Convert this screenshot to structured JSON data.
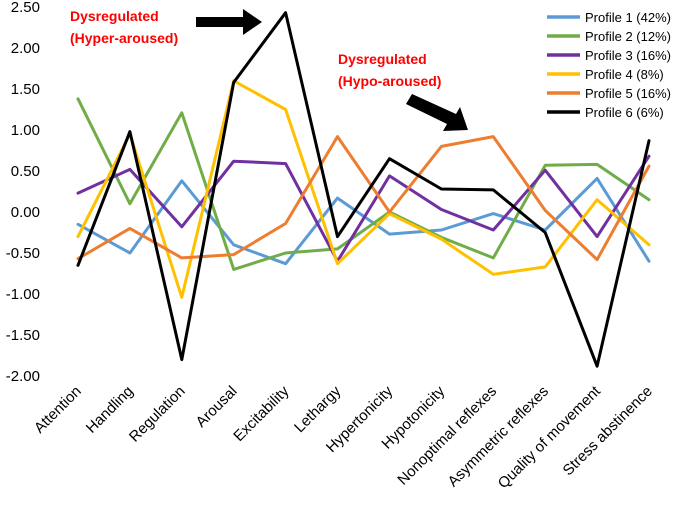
{
  "chart_data": {
    "type": "line",
    "title": "",
    "xlabel": "",
    "ylabel": "",
    "ylim": [
      -2.0,
      2.5
    ],
    "ytick_step": 0.5,
    "yticks": [
      "-2.00",
      "-1.50",
      "-1.00",
      "-0.50",
      "0.00",
      "0.50",
      "1.00",
      "1.50",
      "2.00",
      "2.50"
    ],
    "grid": false,
    "legend_position": "top-right",
    "categories": [
      "Attention",
      "Handling",
      "Regulation",
      "Arousal",
      "Excitability",
      "Lethargy",
      "Hypertonicity",
      "Hypotonicity",
      "Nonoptimal reflexes",
      "Asymmetric reflexes",
      "Quality of movement",
      "Stress abstinence"
    ],
    "series": [
      {
        "name": "Profile 1 (42%)",
        "color": "#5B9BD5",
        "values": [
          -0.15,
          -0.5,
          0.38,
          -0.4,
          -0.63,
          0.17,
          -0.27,
          -0.22,
          -0.02,
          -0.22,
          0.41,
          -0.6
        ]
      },
      {
        "name": "Profile 2 (12%)",
        "color": "#70AD47",
        "values": [
          1.38,
          0.1,
          1.21,
          -0.7,
          -0.5,
          -0.45,
          0.0,
          -0.31,
          -0.56,
          0.57,
          0.58,
          0.15
        ]
      },
      {
        "name": "Profile 3 (16%)",
        "color": "#7030A0",
        "values": [
          0.23,
          0.52,
          -0.18,
          0.62,
          0.59,
          -0.6,
          0.44,
          0.03,
          -0.22,
          0.51,
          -0.3,
          0.68
        ]
      },
      {
        "name": "Profile 4 (8%)",
        "color": "#FFC000",
        "values": [
          -0.3,
          0.95,
          -1.04,
          1.6,
          1.25,
          -0.63,
          -0.02,
          -0.33,
          -0.76,
          -0.67,
          0.15,
          -0.4
        ]
      },
      {
        "name": "Profile 5 (16%)",
        "color": "#ED7D31",
        "values": [
          -0.57,
          -0.2,
          -0.56,
          -0.52,
          -0.14,
          0.92,
          0.0,
          0.8,
          0.92,
          0.02,
          -0.58,
          0.56
        ]
      },
      {
        "name": "Profile 6 (6%)",
        "color": "#000000",
        "values": [
          -0.65,
          0.98,
          -1.8,
          1.58,
          2.43,
          -0.3,
          0.65,
          0.28,
          0.27,
          -0.25,
          -1.88,
          0.87
        ]
      }
    ],
    "annotations": [
      {
        "id": "hyper",
        "lines": [
          "Dysregulated",
          "(Hyper-aroused)"
        ],
        "color": "#FF0000",
        "arrow_color": "#000000"
      },
      {
        "id": "hypo",
        "lines": [
          "Dysregulated",
          "(Hypo-aroused)"
        ],
        "color": "#FF0000",
        "arrow_color": "#000000"
      }
    ]
  }
}
